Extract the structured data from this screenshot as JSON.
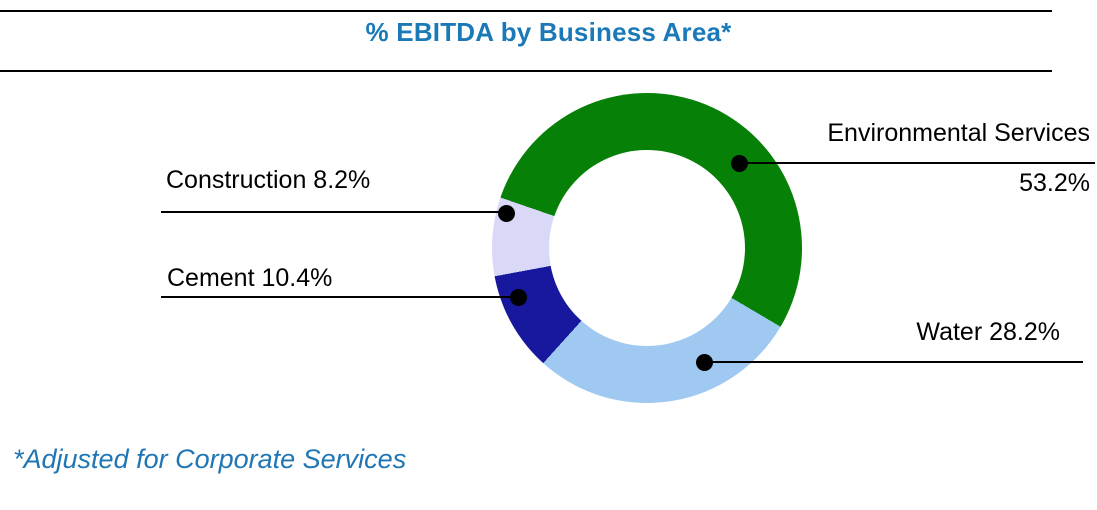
{
  "header": {
    "title": "% EBITDA by Business Area*",
    "title_color": "#1b79b8"
  },
  "footnote": {
    "text": "*Adjusted for Corporate Services",
    "color": "#2076b4"
  },
  "chart_data": {
    "type": "pie",
    "subtype": "donut",
    "title": "% EBITDA by Business Area*",
    "start_angle_deg": 289,
    "inner_radius_ratio": 0.63,
    "legend_position": "none",
    "callout_marker_color": "#000000",
    "segments": [
      {
        "name": "Environmental Services",
        "value": 53.2,
        "value_label": "53.2%",
        "label": "Environmental Services 53.2%",
        "color": "#078007"
      },
      {
        "name": "Water",
        "value": 28.2,
        "value_label": "28.2%",
        "label": "Water 28.2%",
        "color": "#9fc9f1"
      },
      {
        "name": "Cement",
        "value": 10.4,
        "value_label": "10.4%",
        "label": "Cement 10.4%",
        "color": "#18189e"
      },
      {
        "name": "Construction",
        "value": 8.2,
        "value_label": "8.2%",
        "label": "Construction 8.2%",
        "color": "#d9d9f7"
      }
    ]
  }
}
